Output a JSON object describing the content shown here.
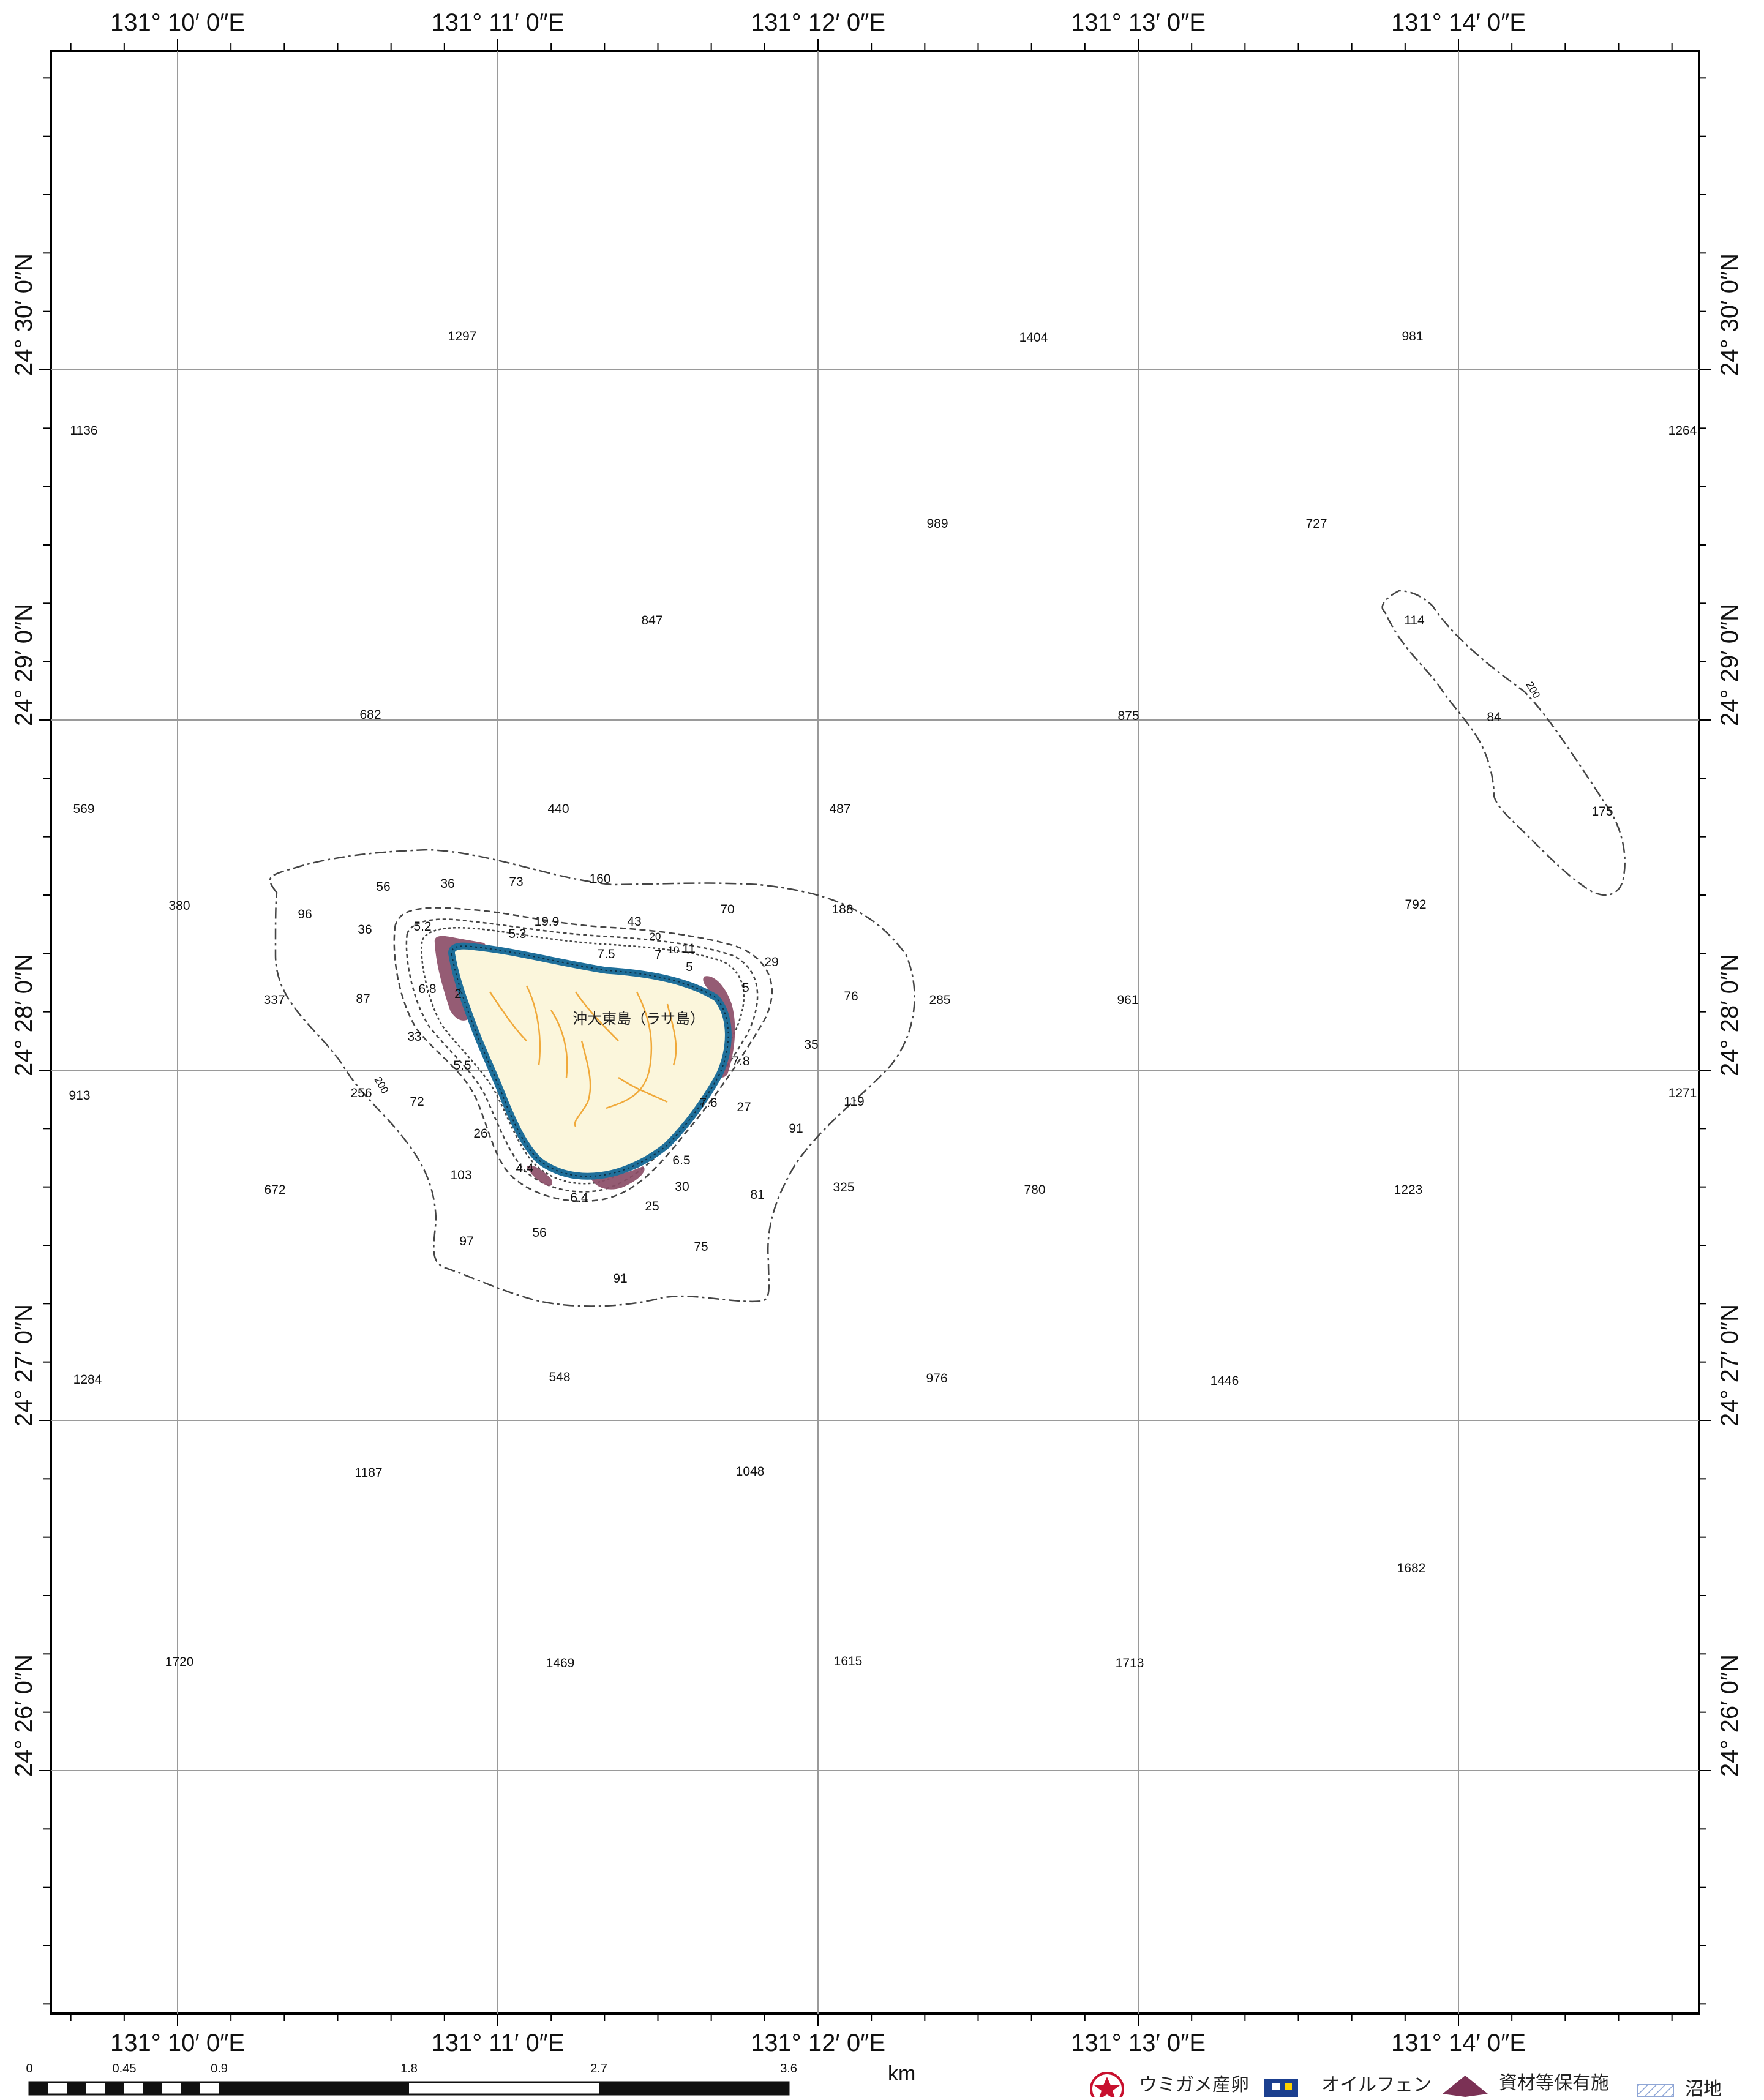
{
  "map": {
    "island_name": "沖大東島（ラサ島）",
    "contour_label": "200",
    "lon_labels": [
      "131°  10′ 0″E",
      "131°  11′ 0″E",
      "131°  12′ 0″E",
      "131°  13′ 0″E",
      "131°  14′ 0″E"
    ],
    "lat_labels": [
      "24°  30′ 0″N",
      "24°  29′ 0″N",
      "24°  28′ 0″N",
      "24°  27′ 0″N",
      "24°  26′ 0″N"
    ],
    "soundings": [
      "1297",
      "1404",
      "981",
      "1136",
      "1264",
      "989",
      "727",
      "847",
      "114",
      "682",
      "875",
      "84",
      "569",
      "440",
      "487",
      "175",
      "56",
      "36",
      "73",
      "160",
      "70",
      "188",
      "792",
      "380",
      "96",
      "36",
      "5.2",
      "19.9",
      "43",
      "20",
      "7",
      "10",
      "11",
      "5",
      "5.3",
      "7.5",
      "29",
      "337",
      "87",
      "6.8",
      "2",
      "5",
      "76",
      "285",
      "961",
      "33",
      "35",
      "7.8",
      "913",
      "256",
      "72",
      "5.5",
      "119",
      "1271",
      "26",
      "7.6",
      "27",
      "91",
      "103",
      "4.4",
      "6.5",
      "30",
      "81",
      "325",
      "780",
      "1223",
      "672",
      "6.4",
      "25",
      "97",
      "56",
      "75",
      "91",
      "1284",
      "548",
      "976",
      "1446",
      "1187",
      "1048",
      "1682",
      "1720",
      "1469",
      "1615",
      "1713"
    ]
  },
  "scale_bar": {
    "unit": "km",
    "ticks": [
      "0",
      "0.45",
      "0.9",
      "1.8",
      "2.7",
      "3.6"
    ]
  },
  "legend": {
    "items": [
      {
        "label": "ウミガメ産卵",
        "icon": "sea-turtle-nesting-icon"
      },
      {
        "label": "オイルフェン",
        "icon": "oil-fence-icon"
      },
      {
        "label": "資材等保有施",
        "icon": "materials-facility-icon"
      },
      {
        "label": "沼地",
        "icon": "marsh-icon"
      }
    ]
  },
  "colors": {
    "land": "#fbf6dc",
    "coastline": "#1f6f9a",
    "sensitive_coast": "#8c4e68",
    "stream": "#f0a93a",
    "grid": "#9a9a9a",
    "frame": "#000000"
  }
}
